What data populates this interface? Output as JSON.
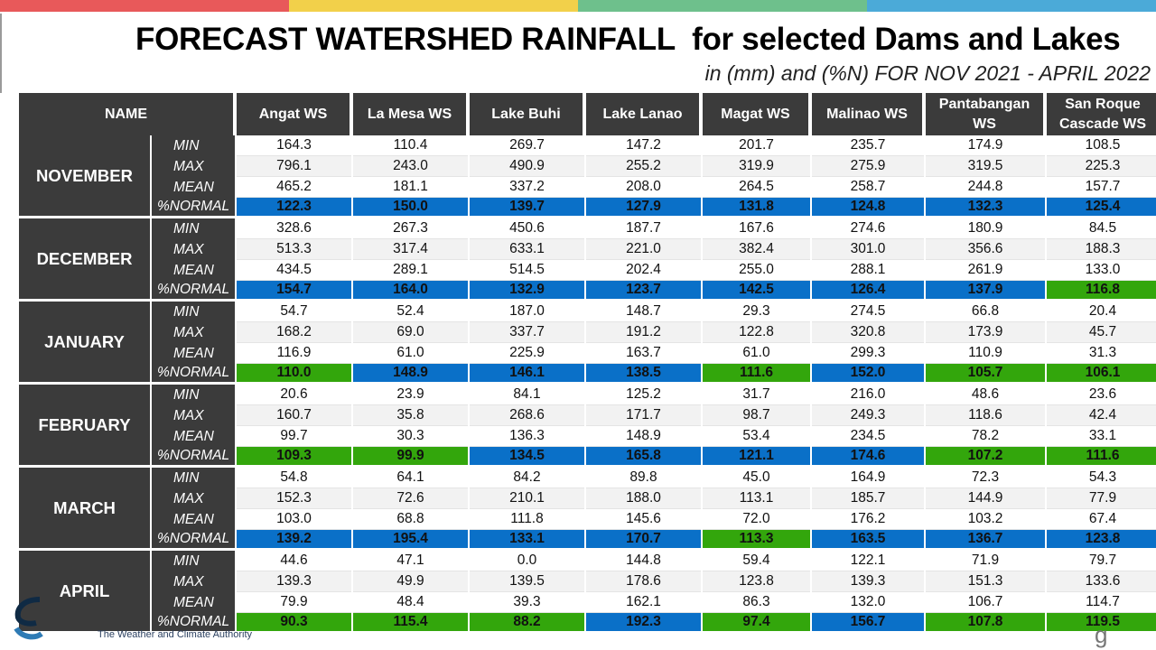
{
  "header_bar_colors": [
    "#e8595a",
    "#f2d04a",
    "#6ec08c",
    "#4baad8"
  ],
  "title": "FORECAST WATERSHED RAINFALL  for selected Dams and Lakes",
  "subtitle": "in (mm) and (%N) FOR NOV 2021 - APRIL 2022",
  "footer_text": "The Weather and Climate Authority",
  "table": {
    "name_header": "NAME",
    "columns": [
      "Angat WS",
      "La Mesa WS",
      "Lake Buhi",
      "Lake Lanao",
      "Magat WS",
      "Malinao WS",
      "Pantabangan WS",
      "San Roque Cascade WS"
    ],
    "stat_labels": [
      "MIN",
      "MAX",
      "MEAN",
      "%NORMAL"
    ],
    "highlight_colors": {
      "B": "#0a70c8",
      "G": "#33a60c"
    },
    "months": [
      {
        "name": "NOVEMBER",
        "min": [
          "164.3",
          "110.4",
          "269.7",
          "147.2",
          "201.7",
          "235.7",
          "174.9",
          "108.5"
        ],
        "max": [
          "796.1",
          "243.0",
          "490.9",
          "255.2",
          "319.9",
          "275.9",
          "319.5",
          "225.3"
        ],
        "mean": [
          "465.2",
          "181.1",
          "337.2",
          "208.0",
          "264.5",
          "258.7",
          "244.8",
          "157.7"
        ],
        "normal": [
          "122.3",
          "150.0",
          "139.7",
          "127.9",
          "131.8",
          "124.8",
          "132.3",
          "125.4"
        ],
        "normal_colors": [
          "B",
          "B",
          "B",
          "B",
          "B",
          "B",
          "B",
          "B"
        ]
      },
      {
        "name": "DECEMBER",
        "min": [
          "328.6",
          "267.3",
          "450.6",
          "187.7",
          "167.6",
          "274.6",
          "180.9",
          "84.5"
        ],
        "max": [
          "513.3",
          "317.4",
          "633.1",
          "221.0",
          "382.4",
          "301.0",
          "356.6",
          "188.3"
        ],
        "mean": [
          "434.5",
          "289.1",
          "514.5",
          "202.4",
          "255.0",
          "288.1",
          "261.9",
          "133.0"
        ],
        "normal": [
          "154.7",
          "164.0",
          "132.9",
          "123.7",
          "142.5",
          "126.4",
          "137.9",
          "116.8"
        ],
        "normal_colors": [
          "B",
          "B",
          "B",
          "B",
          "B",
          "B",
          "B",
          "G"
        ]
      },
      {
        "name": "JANUARY",
        "min": [
          "54.7",
          "52.4",
          "187.0",
          "148.7",
          "29.3",
          "274.5",
          "66.8",
          "20.4"
        ],
        "max": [
          "168.2",
          "69.0",
          "337.7",
          "191.2",
          "122.8",
          "320.8",
          "173.9",
          "45.7"
        ],
        "mean": [
          "116.9",
          "61.0",
          "225.9",
          "163.7",
          "61.0",
          "299.3",
          "110.9",
          "31.3"
        ],
        "normal": [
          "110.0",
          "148.9",
          "146.1",
          "138.5",
          "111.6",
          "152.0",
          "105.7",
          "106.1"
        ],
        "normal_colors": [
          "G",
          "B",
          "B",
          "B",
          "G",
          "B",
          "G",
          "G"
        ]
      },
      {
        "name": "FEBRUARY",
        "min": [
          "20.6",
          "23.9",
          "84.1",
          "125.2",
          "31.7",
          "216.0",
          "48.6",
          "23.6"
        ],
        "max": [
          "160.7",
          "35.8",
          "268.6",
          "171.7",
          "98.7",
          "249.3",
          "118.6",
          "42.4"
        ],
        "mean": [
          "99.7",
          "30.3",
          "136.3",
          "148.9",
          "53.4",
          "234.5",
          "78.2",
          "33.1"
        ],
        "normal": [
          "109.3",
          "99.9",
          "134.5",
          "165.8",
          "121.1",
          "174.6",
          "107.2",
          "111.6"
        ],
        "normal_colors": [
          "G",
          "G",
          "B",
          "B",
          "B",
          "B",
          "G",
          "G"
        ]
      },
      {
        "name": "MARCH",
        "min": [
          "54.8",
          "64.1",
          "84.2",
          "89.8",
          "45.0",
          "164.9",
          "72.3",
          "54.3"
        ],
        "max": [
          "152.3",
          "72.6",
          "210.1",
          "188.0",
          "113.1",
          "185.7",
          "144.9",
          "77.9"
        ],
        "mean": [
          "103.0",
          "68.8",
          "111.8",
          "145.6",
          "72.0",
          "176.2",
          "103.2",
          "67.4"
        ],
        "normal": [
          "139.2",
          "195.4",
          "133.1",
          "170.7",
          "113.3",
          "163.5",
          "136.7",
          "123.8"
        ],
        "normal_colors": [
          "B",
          "B",
          "B",
          "B",
          "G",
          "B",
          "B",
          "B"
        ]
      },
      {
        "name": "APRIL",
        "min": [
          "44.6",
          "47.1",
          "0.0",
          "144.8",
          "59.4",
          "122.1",
          "71.9",
          "79.7"
        ],
        "max": [
          "139.3",
          "49.9",
          "139.5",
          "178.6",
          "123.8",
          "139.3",
          "151.3",
          "133.6"
        ],
        "mean": [
          "79.9",
          "48.4",
          "39.3",
          "162.1",
          "86.3",
          "132.0",
          "106.7",
          "114.7"
        ],
        "normal": [
          "90.3",
          "115.4",
          "88.2",
          "192.3",
          "97.4",
          "156.7",
          "107.8",
          "119.5"
        ],
        "normal_colors": [
          "G",
          "G",
          "G",
          "B",
          "G",
          "B",
          "G",
          "G"
        ]
      }
    ]
  }
}
